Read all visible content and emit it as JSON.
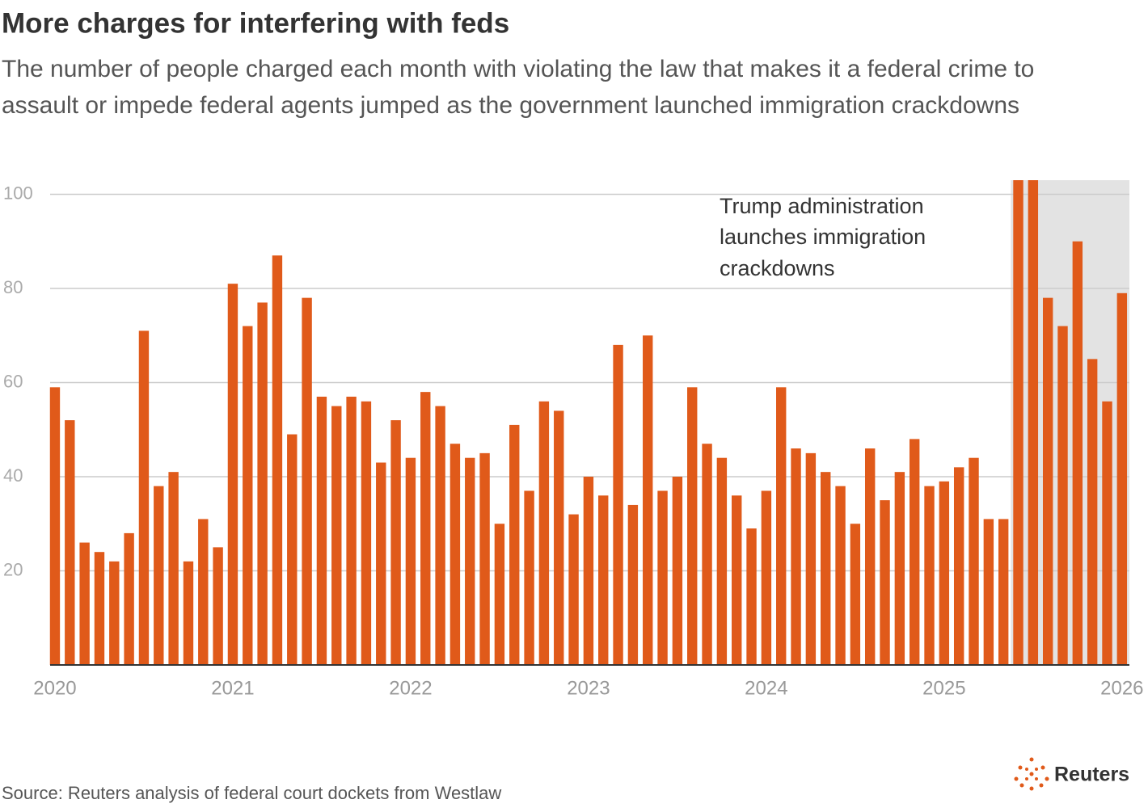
{
  "chart_data": {
    "type": "bar",
    "title": "More charges for interfering with feds",
    "subtitle": [
      "The number of people charged each month with violating the law that makes it a federal crime to",
      "assault or impede federal agents jumped as the government launched immigration crackdowns"
    ],
    "annotation": [
      "Trump administration",
      "launches immigration",
      "crackdowns"
    ],
    "source": "Source: Reuters analysis of federal court dockets from Westlaw",
    "logo": "Reuters",
    "categories": [
      "2020",
      null,
      null,
      null,
      null,
      null,
      null,
      null,
      null,
      null,
      null,
      null,
      "2021",
      null,
      null,
      null,
      null,
      null,
      null,
      null,
      null,
      null,
      null,
      null,
      "2022",
      null,
      null,
      null,
      null,
      null,
      null,
      null,
      null,
      null,
      null,
      null,
      "2023",
      null,
      null,
      null,
      null,
      null,
      null,
      null,
      null,
      null,
      null,
      null,
      "2024",
      null,
      null,
      null,
      null,
      null,
      null,
      null,
      null,
      null,
      null,
      null,
      "2025",
      null,
      null,
      null,
      null,
      null,
      null,
      null,
      null,
      null,
      null,
      null,
      "2026"
    ],
    "values": [
      59,
      52,
      26,
      24,
      22,
      28,
      71,
      38,
      41,
      22,
      31,
      25,
      81,
      72,
      77,
      87,
      49,
      78,
      57,
      55,
      57,
      56,
      43,
      52,
      44,
      58,
      55,
      47,
      44,
      45,
      30,
      51,
      37,
      56,
      54,
      32,
      40,
      36,
      68,
      34,
      70,
      37,
      40,
      59,
      47,
      44,
      36,
      29,
      37,
      59,
      46,
      45,
      41,
      38,
      30,
      46,
      35,
      41,
      48,
      38,
      39,
      42,
      44,
      31,
      31,
      103,
      103,
      78,
      72,
      90,
      65,
      56,
      79
    ],
    "color": "#e05a1a",
    "ylim": [
      0,
      103
    ],
    "yticks": [
      20,
      40,
      60,
      80,
      100
    ],
    "grid": true
  }
}
